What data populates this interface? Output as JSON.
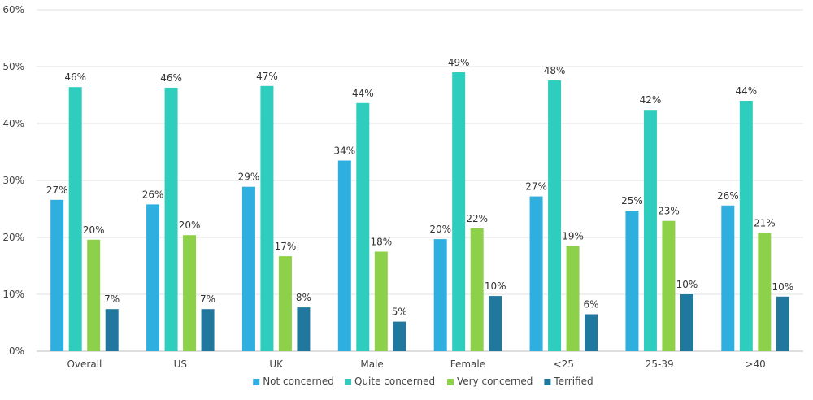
{
  "chart_data": {
    "type": "bar",
    "categories": [
      "Overall",
      "US",
      "UK",
      "Male",
      "Female",
      "<25",
      "25-39",
      ">40"
    ],
    "series": [
      {
        "name": "Not concerned",
        "color": "#2eafe0",
        "values": [
          26.6,
          25.8,
          28.9,
          33.5,
          19.7,
          27.2,
          24.7,
          25.6
        ],
        "labels": [
          "27%",
          "26%",
          "29%",
          "34%",
          "20%",
          "27%",
          "25%",
          "26%"
        ]
      },
      {
        "name": "Quite concerned",
        "color": "#2ecdbd",
        "values": [
          46.4,
          46.3,
          46.6,
          43.6,
          49.0,
          47.6,
          42.4,
          44.0
        ],
        "labels": [
          "46%",
          "46%",
          "47%",
          "44%",
          "49%",
          "48%",
          "42%",
          "44%"
        ]
      },
      {
        "name": "Very concerned",
        "color": "#8dd14a",
        "values": [
          19.6,
          20.4,
          16.7,
          17.5,
          21.6,
          18.5,
          22.9,
          20.8
        ],
        "labels": [
          "20%",
          "20%",
          "17%",
          "18%",
          "22%",
          "19%",
          "23%",
          "21%"
        ]
      },
      {
        "name": "Terrified",
        "color": "#21789e",
        "values": [
          7.4,
          7.4,
          7.7,
          5.2,
          9.7,
          6.5,
          10.0,
          9.6
        ],
        "labels": [
          "7%",
          "7%",
          "8%",
          "5%",
          "10%",
          "6%",
          "10%",
          "10%"
        ]
      }
    ],
    "y_ticks": [
      "0%",
      "10%",
      "20%",
      "30%",
      "40%",
      "50%",
      "60%"
    ],
    "ylim": [
      0,
      60
    ],
    "grid": true,
    "legend_position": "bottom"
  }
}
